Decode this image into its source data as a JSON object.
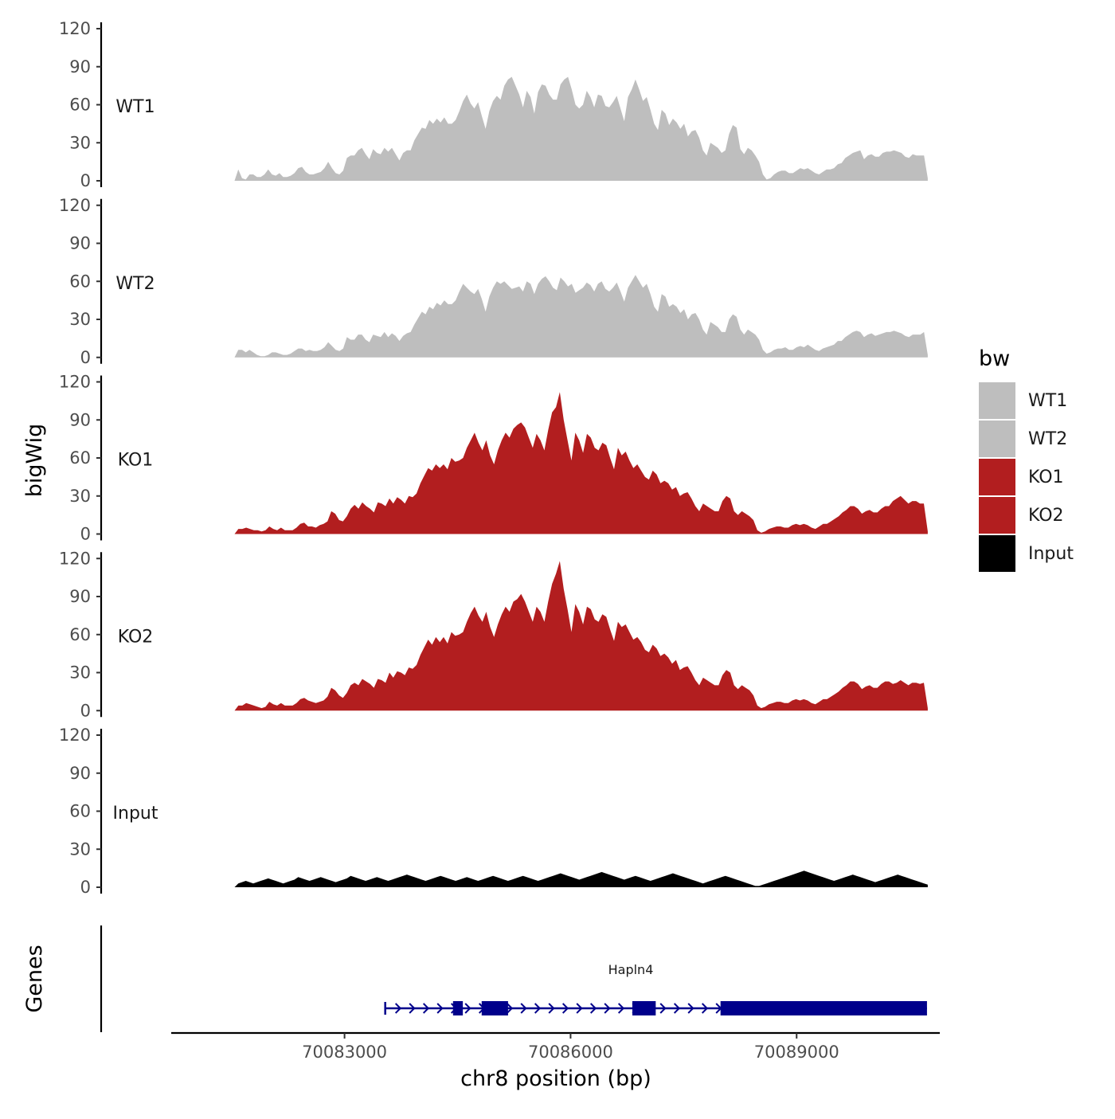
{
  "chart_data": {
    "type": "area",
    "ylabel": "bigWig",
    "xlabel": "chr8 position (bp)",
    "genes_label": "Genes",
    "xlim": [
      70080700,
      70090900
    ],
    "ylim": [
      0,
      120
    ],
    "yticks": [
      0,
      30,
      60,
      90,
      120
    ],
    "xticks": [
      70083000,
      70086000,
      70089000
    ],
    "x_start": 70081540,
    "x_end": 70090740,
    "legend_title": "bw",
    "legend_position": "right",
    "series": [
      {
        "name": "WT1",
        "color": "#bebebe",
        "values": [
          0,
          9,
          2,
          1,
          5,
          5,
          3,
          3,
          5,
          9,
          5,
          4,
          6,
          3,
          3,
          4,
          6,
          10,
          11,
          7,
          5,
          5,
          6,
          7,
          10,
          15,
          10,
          6,
          5,
          8,
          18,
          20,
          20,
          24,
          26,
          21,
          17,
          25,
          22,
          21,
          26,
          23,
          26,
          21,
          16,
          22,
          24,
          24,
          32,
          37,
          42,
          41,
          48,
          45,
          49,
          46,
          50,
          45,
          45,
          48,
          55,
          63,
          68,
          61,
          57,
          62,
          51,
          41,
          55,
          63,
          67,
          64,
          75,
          80,
          82,
          75,
          68,
          58,
          71,
          66,
          53,
          70,
          76,
          75,
          68,
          64,
          64,
          76,
          80,
          82,
          72,
          60,
          57,
          60,
          71,
          66,
          58,
          68,
          67,
          59,
          58,
          62,
          67,
          57,
          47,
          66,
          72,
          80,
          72,
          63,
          66,
          56,
          45,
          40,
          56,
          53,
          44,
          49,
          46,
          41,
          45,
          35,
          39,
          40,
          34,
          24,
          20,
          30,
          28,
          26,
          22,
          24,
          37,
          44,
          42,
          25,
          21,
          26,
          24,
          20,
          15,
          5,
          1,
          2,
          5,
          7,
          8,
          8,
          6,
          6,
          8,
          10,
          9,
          10,
          8,
          6,
          5,
          7,
          9,
          9,
          10,
          13,
          14,
          18,
          20,
          22,
          23,
          24,
          17,
          20,
          21,
          19,
          19,
          22,
          23,
          23,
          24,
          23,
          22,
          19,
          18,
          21,
          20,
          20,
          20,
          2
        ]
      },
      {
        "name": "WT2",
        "color": "#bebebe",
        "values": [
          0,
          6,
          6,
          4,
          6,
          4,
          2,
          1,
          1,
          2,
          4,
          4,
          3,
          2,
          2,
          3,
          5,
          7,
          7,
          5,
          6,
          5,
          5,
          6,
          8,
          12,
          9,
          6,
          5,
          7,
          16,
          14,
          14,
          18,
          18,
          14,
          12,
          18,
          17,
          16,
          20,
          16,
          19,
          17,
          13,
          17,
          19,
          20,
          26,
          31,
          36,
          34,
          40,
          38,
          43,
          41,
          45,
          42,
          42,
          45,
          52,
          58,
          55,
          52,
          50,
          54,
          46,
          36,
          48,
          55,
          60,
          58,
          60,
          57,
          54,
          55,
          56,
          52,
          60,
          58,
          50,
          58,
          62,
          64,
          60,
          55,
          53,
          63,
          60,
          56,
          58,
          51,
          53,
          55,
          59,
          57,
          52,
          58,
          60,
          54,
          52,
          55,
          59,
          52,
          44,
          55,
          60,
          65,
          60,
          55,
          58,
          50,
          40,
          36,
          50,
          48,
          40,
          42,
          40,
          35,
          38,
          30,
          34,
          35,
          30,
          22,
          18,
          28,
          26,
          24,
          20,
          20,
          30,
          34,
          32,
          22,
          18,
          22,
          20,
          18,
          14,
          6,
          3,
          4,
          6,
          7,
          7,
          8,
          6,
          6,
          8,
          9,
          8,
          10,
          8,
          6,
          5,
          7,
          8,
          9,
          10,
          13,
          13,
          16,
          18,
          20,
          21,
          20,
          16,
          18,
          19,
          17,
          18,
          19,
          20,
          20,
          21,
          20,
          19,
          17,
          16,
          18,
          18,
          18,
          20,
          2
        ]
      },
      {
        "name": "KO1",
        "color": "#b21e1f",
        "values": [
          0,
          4,
          4,
          5,
          4,
          3,
          3,
          2,
          3,
          6,
          4,
          3,
          5,
          3,
          3,
          3,
          5,
          8,
          9,
          6,
          6,
          5,
          7,
          8,
          10,
          18,
          16,
          11,
          10,
          14,
          20,
          23,
          20,
          25,
          22,
          20,
          17,
          25,
          24,
          22,
          28,
          24,
          29,
          27,
          24,
          30,
          29,
          32,
          40,
          46,
          52,
          50,
          55,
          52,
          55,
          51,
          60,
          57,
          58,
          60,
          68,
          74,
          80,
          72,
          66,
          74,
          62,
          55,
          66,
          74,
          80,
          76,
          83,
          86,
          88,
          84,
          76,
          68,
          79,
          74,
          66,
          82,
          96,
          100,
          112,
          90,
          74,
          58,
          80,
          74,
          64,
          79,
          76,
          68,
          66,
          72,
          70,
          60,
          51,
          68,
          62,
          65,
          58,
          52,
          55,
          50,
          45,
          43,
          50,
          47,
          40,
          42,
          40,
          35,
          37,
          30,
          32,
          33,
          28,
          22,
          18,
          24,
          22,
          20,
          18,
          18,
          26,
          30,
          28,
          18,
          15,
          18,
          16,
          14,
          11,
          3,
          1,
          2,
          4,
          5,
          6,
          6,
          5,
          5,
          7,
          8,
          7,
          8,
          7,
          5,
          4,
          6,
          8,
          8,
          10,
          12,
          14,
          17,
          19,
          22,
          22,
          20,
          16,
          18,
          19,
          17,
          17,
          20,
          22,
          22,
          26,
          28,
          30,
          27,
          24,
          26,
          26,
          24,
          24,
          2
        ]
      },
      {
        "name": "KO2",
        "color": "#b21e1f",
        "values": [
          0,
          4,
          4,
          6,
          5,
          4,
          3,
          2,
          3,
          7,
          5,
          4,
          6,
          4,
          4,
          4,
          6,
          9,
          10,
          8,
          7,
          6,
          7,
          8,
          11,
          18,
          16,
          12,
          10,
          14,
          20,
          22,
          20,
          25,
          23,
          21,
          18,
          25,
          24,
          22,
          30,
          26,
          31,
          30,
          28,
          34,
          33,
          36,
          44,
          50,
          56,
          52,
          58,
          54,
          58,
          53,
          62,
          59,
          60,
          62,
          70,
          77,
          82,
          75,
          70,
          78,
          66,
          58,
          68,
          76,
          82,
          78,
          86,
          88,
          92,
          86,
          78,
          70,
          82,
          78,
          70,
          86,
          100,
          108,
          118,
          96,
          80,
          62,
          84,
          78,
          68,
          82,
          80,
          72,
          70,
          76,
          74,
          64,
          55,
          70,
          66,
          68,
          62,
          56,
          58,
          54,
          48,
          46,
          52,
          49,
          43,
          45,
          42,
          37,
          40,
          32,
          34,
          35,
          30,
          24,
          20,
          26,
          24,
          22,
          20,
          20,
          28,
          32,
          30,
          20,
          17,
          20,
          18,
          16,
          12,
          4,
          2,
          3,
          5,
          6,
          7,
          7,
          6,
          6,
          8,
          9,
          8,
          9,
          8,
          6,
          5,
          7,
          9,
          9,
          11,
          13,
          15,
          18,
          20,
          23,
          23,
          21,
          17,
          19,
          20,
          18,
          18,
          21,
          23,
          23,
          21,
          22,
          24,
          22,
          20,
          22,
          22,
          21,
          22,
          2
        ]
      },
      {
        "name": "Input",
        "color": "#000000",
        "values": [
          0,
          3,
          4,
          5,
          4,
          3,
          4,
          5,
          6,
          7,
          6,
          5,
          4,
          3,
          4,
          5,
          6,
          8,
          7,
          6,
          5,
          6,
          7,
          8,
          7,
          6,
          5,
          4,
          5,
          6,
          7,
          9,
          8,
          7,
          6,
          5,
          6,
          7,
          8,
          7,
          6,
          5,
          6,
          7,
          8,
          9,
          10,
          9,
          8,
          7,
          6,
          5,
          6,
          7,
          8,
          9,
          8,
          7,
          6,
          5,
          6,
          7,
          8,
          7,
          6,
          5,
          6,
          7,
          8,
          9,
          8,
          7,
          6,
          5,
          6,
          7,
          8,
          9,
          8,
          7,
          6,
          5,
          6,
          7,
          8,
          9,
          10,
          11,
          10,
          9,
          8,
          7,
          6,
          7,
          8,
          9,
          10,
          11,
          12,
          11,
          10,
          9,
          8,
          7,
          6,
          7,
          8,
          9,
          8,
          7,
          6,
          5,
          6,
          7,
          8,
          9,
          10,
          11,
          10,
          9,
          8,
          7,
          6,
          5,
          4,
          3,
          4,
          5,
          6,
          7,
          8,
          9,
          8,
          7,
          6,
          5,
          4,
          3,
          2,
          1,
          1,
          2,
          3,
          4,
          5,
          6,
          7,
          8,
          9,
          10,
          11,
          12,
          13,
          12,
          11,
          10,
          9,
          8,
          7,
          6,
          5,
          6,
          7,
          8,
          9,
          10,
          9,
          8,
          7,
          6,
          5,
          4,
          5,
          6,
          7,
          8,
          9,
          10,
          9,
          8,
          7,
          6,
          5,
          4,
          3,
          2
        ]
      }
    ],
    "gene": {
      "name": "Hapln4",
      "color": "#00008b",
      "strand": "+",
      "start": 70083540,
      "end": 70090730,
      "exons": [
        [
          70084440,
          70084570
        ],
        [
          70084820,
          70085170
        ],
        [
          70086820,
          70087130
        ],
        [
          70087990,
          70090730
        ]
      ]
    }
  }
}
